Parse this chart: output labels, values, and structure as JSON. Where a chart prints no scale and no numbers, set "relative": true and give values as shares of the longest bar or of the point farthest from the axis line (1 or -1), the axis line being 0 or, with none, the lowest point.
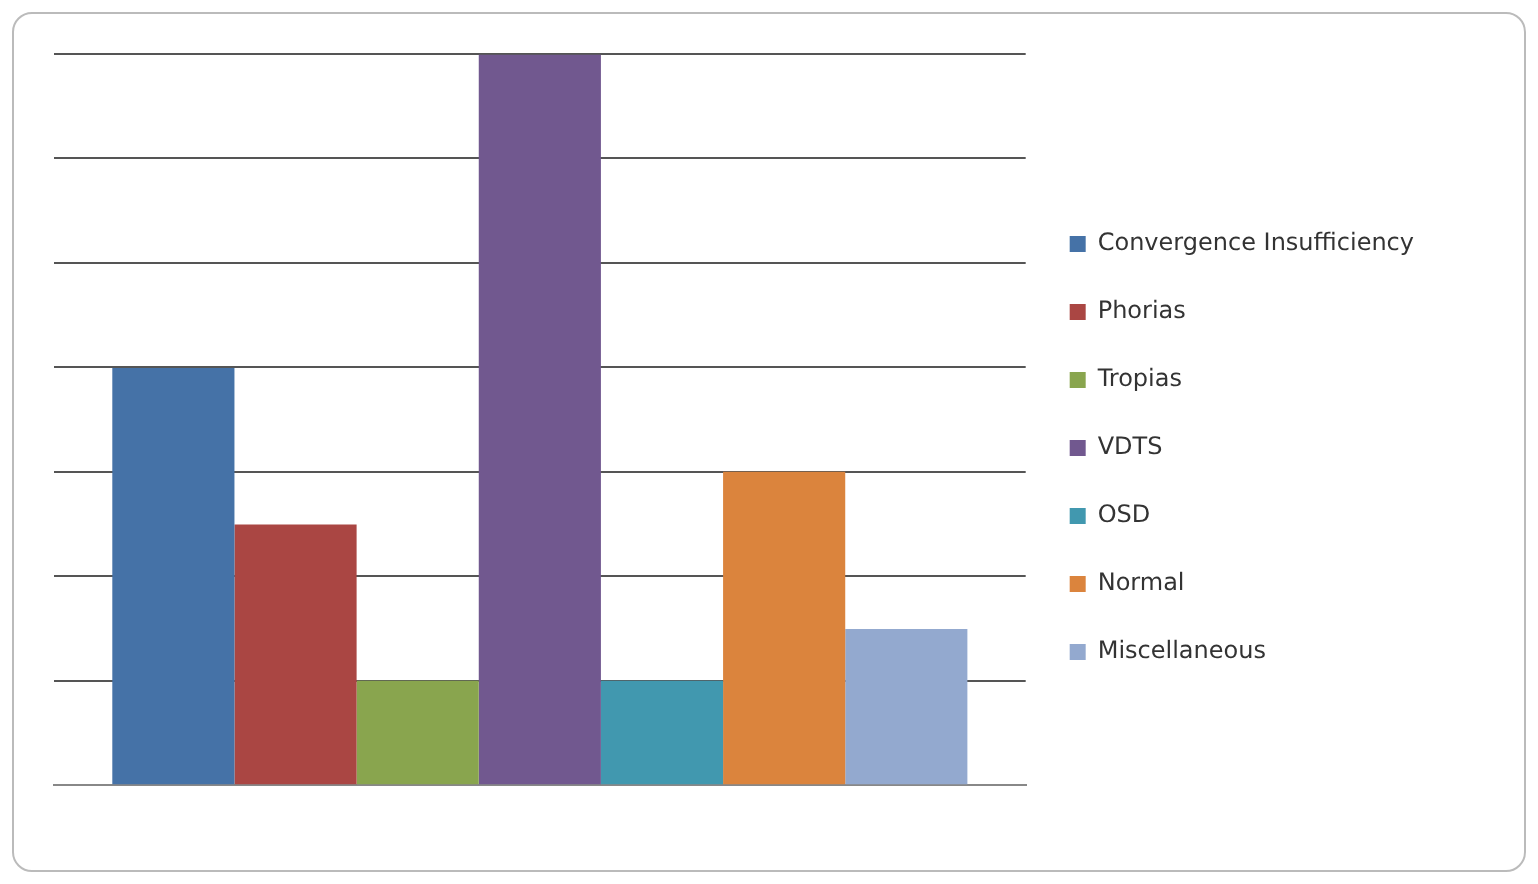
{
  "chart_data": {
    "type": "bar",
    "relative": true,
    "categories": [
      null
    ],
    "grid": "y",
    "legend": "right",
    "series": [
      {
        "name": "Convergence Insufficiency",
        "color": "#4572a7",
        "values": [
          0.571
        ]
      },
      {
        "name": "Phorias",
        "color": "#aa4643",
        "values": [
          0.357
        ]
      },
      {
        "name": "Tropias",
        "color": "#89a54e",
        "values": [
          0.143
        ]
      },
      {
        "name": "VDTS",
        "color": "#71588f",
        "values": [
          1
        ]
      },
      {
        "name": "OSD",
        "color": "#4198af",
        "values": [
          0.143
        ]
      },
      {
        "name": "Normal",
        "color": "#db843d",
        "values": [
          0.429
        ]
      },
      {
        "name": "Miscellaneous",
        "color": "#93a9cf",
        "values": [
          0.214
        ]
      }
    ]
  }
}
